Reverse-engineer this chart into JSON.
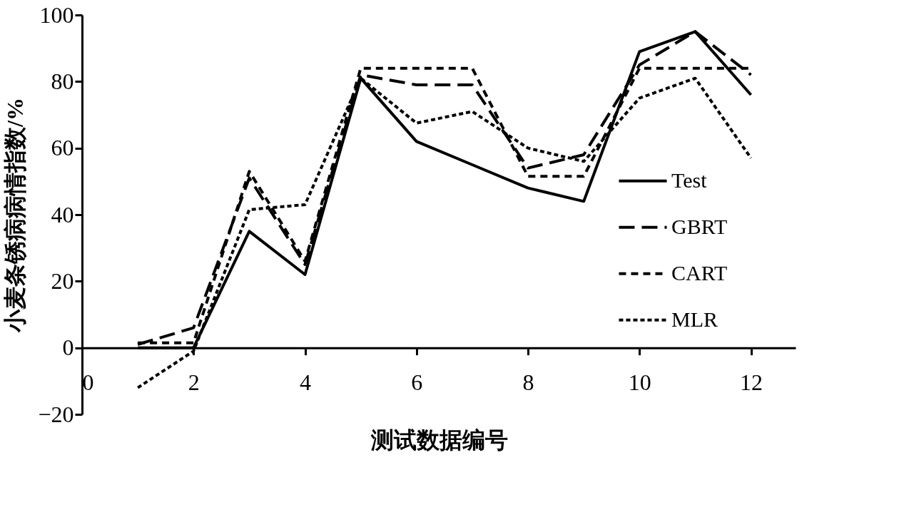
{
  "chart_data": {
    "type": "line",
    "xlabel": "测试数据编号",
    "ylabel": "小麦条锈病病情指数/%",
    "x": [
      1,
      2,
      3,
      4,
      5,
      6,
      7,
      8,
      9,
      10,
      11,
      12
    ],
    "series": [
      {
        "name": "Test",
        "color": "#000000",
        "line_style": "solid",
        "values": [
          0,
          0,
          35,
          22,
          81,
          62,
          55,
          48,
          44,
          89,
          95,
          76
        ]
      },
      {
        "name": "GBRT",
        "color": "#000000",
        "line_style": "dashed",
        "values": [
          1,
          6,
          51,
          25,
          82,
          79,
          79,
          54,
          58,
          85,
          95,
          82
        ]
      },
      {
        "name": "CART",
        "color": "#000000",
        "line_style": "dashed",
        "values": [
          1.5,
          1.5,
          53,
          26,
          84,
          84,
          84,
          51.5,
          51.5,
          84,
          84,
          84
        ]
      },
      {
        "name": "MLR",
        "color": "#000000",
        "line_style": "dashed",
        "values": [
          -12,
          -1,
          41.5,
          43,
          81,
          67.5,
          71,
          60,
          56,
          75,
          81,
          57
        ]
      }
    ],
    "xlim": [
      0,
      12.8
    ],
    "xticks": [
      0,
      2,
      4,
      6,
      8,
      10,
      12
    ],
    "ylim": [
      -20,
      100
    ],
    "yticks": [
      -20,
      0,
      20,
      40,
      60,
      80,
      100
    ],
    "grid": false,
    "legend": "bottom right",
    "marker": "none"
  }
}
